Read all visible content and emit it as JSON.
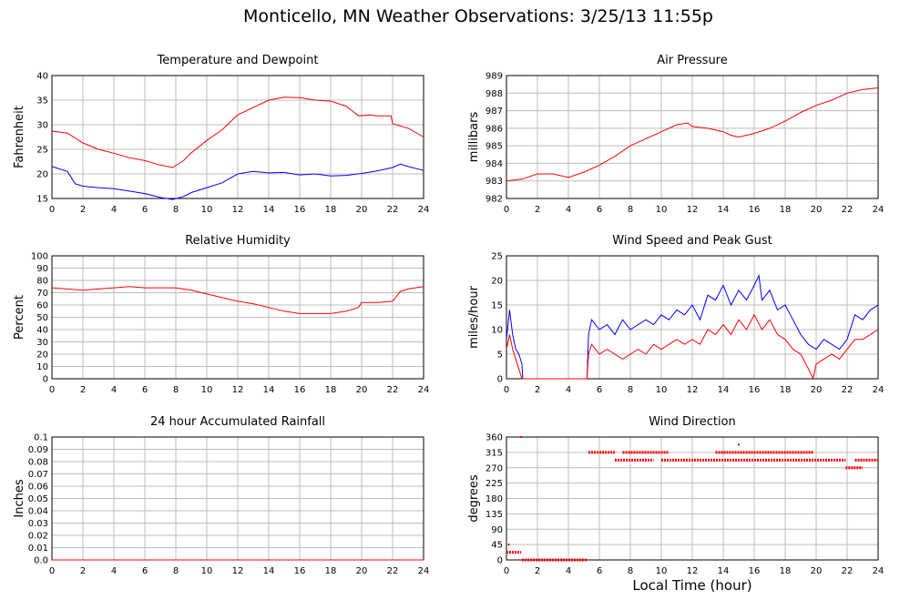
{
  "page_title": "Monticello, MN Weather Observations: 3/25/13 11:55p",
  "x_axis_label": "Local Time (hour)",
  "colors": {
    "red": "#ff0000",
    "blue": "#0000ff",
    "grid": "#bcbcbc"
  },
  "chart_data": [
    {
      "id": "temp",
      "type": "line",
      "title": "Temperature and Dewpoint",
      "ylabel": "Fahrenheit",
      "xlim": [
        0,
        24
      ],
      "xticks": [
        0,
        2,
        4,
        6,
        8,
        10,
        12,
        14,
        16,
        18,
        20,
        22,
        24
      ],
      "ylim": [
        15,
        40
      ],
      "yticks": [
        15,
        20,
        25,
        30,
        35,
        40
      ],
      "ytick_labels": [
        "15",
        "20",
        "25",
        "30",
        "35",
        "40"
      ],
      "series": [
        {
          "color": "#ff0000",
          "x": [
            0,
            1,
            2,
            3,
            4,
            5,
            6,
            7,
            7.8,
            8.5,
            9,
            10,
            11,
            12,
            13,
            14,
            15,
            16,
            17,
            18,
            19,
            19.8,
            20.5,
            21,
            21.9,
            22,
            23,
            24
          ],
          "y": [
            28.7,
            28.3,
            26.3,
            25.0,
            24.2,
            23.3,
            22.7,
            21.8,
            21.3,
            22.7,
            24.3,
            26.8,
            29.0,
            32.0,
            33.5,
            35.0,
            35.6,
            35.5,
            35.0,
            34.8,
            33.8,
            31.8,
            32.0,
            31.8,
            31.8,
            30.2,
            29.3,
            27.5
          ]
        },
        {
          "color": "#0000ff",
          "x": [
            0,
            1,
            1.5,
            2,
            3,
            4,
            5,
            6,
            7,
            7.8,
            8.5,
            9,
            10,
            11,
            12,
            13,
            14,
            15,
            16,
            17,
            18,
            19,
            20,
            21,
            22,
            22.5,
            23,
            24
          ],
          "y": [
            21.5,
            20.5,
            18.0,
            17.5,
            17.2,
            17.0,
            16.5,
            16.0,
            15.2,
            14.8,
            15.4,
            16.2,
            17.2,
            18.2,
            20.0,
            20.5,
            20.2,
            20.3,
            19.8,
            20.0,
            19.6,
            19.7,
            20.1,
            20.6,
            21.3,
            22.0,
            21.5,
            20.7
          ]
        }
      ]
    },
    {
      "id": "pressure",
      "type": "line",
      "title": "Air Pressure",
      "ylabel": "millibars",
      "xlim": [
        0,
        24
      ],
      "xticks": [
        0,
        2,
        4,
        6,
        8,
        10,
        12,
        14,
        16,
        18,
        20,
        22,
        24
      ],
      "ylim": [
        982,
        989
      ],
      "yticks": [
        982,
        983,
        984,
        985,
        986,
        987,
        988,
        989
      ],
      "ytick_labels": [
        "982",
        "983",
        "984",
        "985",
        "986",
        "987",
        "988",
        "989"
      ],
      "series": [
        {
          "color": "#ff0000",
          "x": [
            0,
            1,
            2,
            3,
            4,
            5,
            6,
            7,
            8,
            9,
            10,
            11,
            11.7,
            12,
            13,
            14,
            14.5,
            15,
            16,
            17,
            18,
            19,
            20,
            21,
            22,
            23,
            24
          ],
          "y": [
            983.0,
            983.1,
            983.4,
            983.4,
            983.2,
            983.5,
            983.9,
            984.4,
            985.0,
            985.4,
            985.8,
            986.2,
            986.3,
            986.1,
            986.0,
            985.8,
            985.6,
            985.5,
            985.7,
            986.0,
            986.4,
            986.9,
            987.3,
            987.6,
            988.0,
            988.2,
            988.3
          ]
        }
      ]
    },
    {
      "id": "humidity",
      "type": "line",
      "title": "Relative Humidity",
      "ylabel": "Percent",
      "xlim": [
        0,
        24
      ],
      "xticks": [
        0,
        2,
        4,
        6,
        8,
        10,
        12,
        14,
        16,
        18,
        20,
        22,
        24
      ],
      "ylim": [
        0,
        100
      ],
      "yticks": [
        0,
        10,
        20,
        30,
        40,
        50,
        60,
        70,
        80,
        90,
        100
      ],
      "ytick_labels": [
        "0",
        "10",
        "20",
        "30",
        "40",
        "50",
        "60",
        "70",
        "80",
        "90",
        "100"
      ],
      "series": [
        {
          "color": "#ff0000",
          "x": [
            0,
            1,
            2,
            3,
            4,
            5,
            6,
            7,
            8,
            9,
            10,
            11,
            12,
            13,
            14,
            15,
            16,
            17,
            18,
            19,
            19.8,
            20,
            21,
            22,
            22.5,
            23,
            24
          ],
          "y": [
            74,
            73,
            72,
            73,
            74,
            75,
            74,
            74,
            74,
            72,
            69,
            66,
            63,
            61,
            58,
            55,
            53,
            53,
            53,
            55,
            58,
            62,
            62,
            63,
            71,
            73,
            75
          ]
        }
      ]
    },
    {
      "id": "wind",
      "type": "line",
      "title": "Wind Speed and Peak Gust",
      "ylabel": "miles/hour",
      "xlim": [
        0,
        24
      ],
      "xticks": [
        0,
        2,
        4,
        6,
        8,
        10,
        12,
        14,
        16,
        18,
        20,
        22,
        24
      ],
      "ylim": [
        0,
        25
      ],
      "yticks": [
        0,
        5,
        10,
        15,
        20,
        25
      ],
      "ytick_labels": [
        "0",
        "5",
        "10",
        "15",
        "20",
        "25"
      ],
      "series": [
        {
          "color": "#0000ff",
          "x": [
            0,
            0.2,
            0.4,
            0.6,
            0.8,
            1.0,
            1.05,
            5.2,
            5.3,
            5.5,
            6,
            6.5,
            7,
            7.5,
            8,
            8.5,
            9,
            9.5,
            10,
            10.5,
            11,
            11.5,
            12,
            12.5,
            13,
            13.5,
            14,
            14.5,
            15,
            15.5,
            16,
            16.3,
            16.5,
            17,
            17.5,
            18,
            18.5,
            19,
            19.5,
            20,
            20.5,
            21,
            21.5,
            22,
            22.5,
            23,
            23.5,
            24
          ],
          "y": [
            8,
            14,
            9,
            6,
            5,
            3,
            0,
            0,
            9,
            12,
            10,
            11,
            9,
            12,
            10,
            11,
            12,
            11,
            13,
            12,
            14,
            13,
            15,
            12,
            17,
            16,
            19,
            15,
            18,
            16,
            19,
            21,
            16,
            18,
            14,
            15,
            12,
            9,
            7,
            6,
            8,
            7,
            6,
            8,
            13,
            12,
            14,
            15
          ]
        },
        {
          "color": "#ff0000",
          "x": [
            0,
            0.2,
            0.4,
            0.6,
            0.8,
            0.9,
            1.0,
            5.2,
            5.3,
            5.5,
            6,
            6.5,
            7,
            7.5,
            8,
            8.5,
            9,
            9.5,
            10,
            10.5,
            11,
            11.5,
            12,
            12.5,
            13,
            13.5,
            14,
            14.5,
            15,
            15.5,
            16,
            16.5,
            17,
            17.5,
            18,
            18.5,
            19,
            19.5,
            19.8,
            20,
            20.5,
            21,
            21.5,
            22,
            22.5,
            23,
            23.5,
            24
          ],
          "y": [
            6,
            9,
            6,
            4,
            2,
            1,
            0,
            0,
            5,
            7,
            5,
            6,
            5,
            4,
            5,
            6,
            5,
            7,
            6,
            7,
            8,
            7,
            8,
            7,
            10,
            9,
            11,
            9,
            12,
            10,
            13,
            10,
            12,
            9,
            8,
            6,
            5,
            2,
            0,
            3,
            4,
            5,
            4,
            6,
            8,
            8,
            9,
            10
          ]
        }
      ]
    },
    {
      "id": "rain",
      "type": "line",
      "title": "24 hour Accumulated Rainfall",
      "ylabel": "Inches",
      "xlim": [
        0,
        24
      ],
      "xticks": [
        0,
        2,
        4,
        6,
        8,
        10,
        12,
        14,
        16,
        18,
        20,
        22,
        24
      ],
      "ylim": [
        0,
        0.1
      ],
      "yticks": [
        0,
        0.01,
        0.02,
        0.03,
        0.04,
        0.05,
        0.06,
        0.07,
        0.08,
        0.09,
        0.1
      ],
      "ytick_labels": [
        "0.0",
        "0.01",
        "0.02",
        "0.03",
        "0.04",
        "0.05",
        "0.06",
        "0.07",
        "0.08",
        "0.09",
        "0.1"
      ],
      "series": [
        {
          "color": "#ff0000",
          "x": [
            0,
            24
          ],
          "y": [
            0,
            0
          ]
        }
      ]
    },
    {
      "id": "direction",
      "type": "scatter",
      "title": "Wind Direction",
      "ylabel": "degrees",
      "xlim": [
        0,
        24
      ],
      "xticks": [
        0,
        2,
        4,
        6,
        8,
        10,
        12,
        14,
        16,
        18,
        20,
        22,
        24
      ],
      "ylim": [
        0,
        360
      ],
      "yticks": [
        0,
        45,
        90,
        135,
        180,
        225,
        270,
        315,
        360
      ],
      "ytick_labels": [
        "0",
        "45",
        "90",
        "135",
        "180",
        "225",
        "270",
        "315",
        "360"
      ],
      "segments": [
        {
          "x0": 0.0,
          "x1": 0.95,
          "y": 22.5
        },
        {
          "x0": 1.0,
          "x1": 5.2,
          "y": 0
        },
        {
          "x0": 5.3,
          "x1": 7.0,
          "y": 315
        },
        {
          "x0": 7.0,
          "x1": 9.5,
          "y": 292.5
        },
        {
          "x0": 7.5,
          "x1": 10.5,
          "y": 315
        },
        {
          "x0": 10.0,
          "x1": 21.9,
          "y": 292.5
        },
        {
          "x0": 13.5,
          "x1": 19.8,
          "y": 315
        },
        {
          "x0": 21.9,
          "x1": 23.0,
          "y": 270
        },
        {
          "x0": 22.5,
          "x1": 24.0,
          "y": 292.5
        }
      ],
      "points": [
        {
          "x": 0.15,
          "y": 45
        },
        {
          "x": 0.95,
          "y": 360
        },
        {
          "x": 15.0,
          "y": 337.5
        }
      ],
      "series_color": "#ff0000"
    }
  ]
}
